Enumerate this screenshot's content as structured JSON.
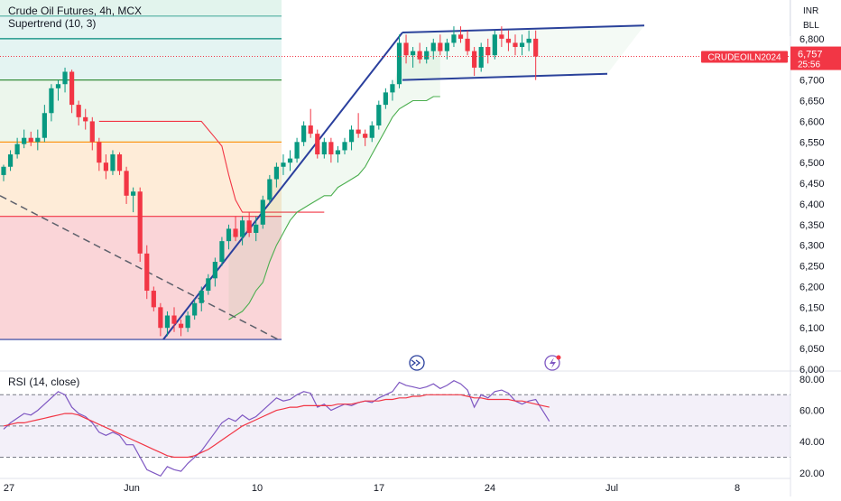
{
  "legend": {
    "title": "Crude Oil Futures, 4h, MCX",
    "indicator": "Supertrend (10, 3)",
    "rsi": "RSI (14, close)"
  },
  "header": {
    "currency": "INR",
    "unit": "BLL"
  },
  "price_label": {
    "symbol": "CRUDEOILN2024",
    "price": "6,757",
    "countdown": "25:56"
  },
  "colors": {
    "up": "#089981",
    "down": "#f23645",
    "supertrend_up": "#4caf50",
    "supertrend_down": "#f23645",
    "trendline": "#2a3f9d",
    "rsi_line": "#7e57c2",
    "rsi_ma": "#f23645"
  },
  "icons": [
    "fast-forward-icon",
    "lightning-icon"
  ],
  "chart_data": [
    {
      "type": "candlestick",
      "title": "Crude Oil Futures, 4h, MCX",
      "x_ticks": [
        "27",
        "Jun",
        "10",
        "17",
        "24",
        "Jul",
        "8"
      ],
      "y_ticks": [
        6000,
        6050,
        6100,
        6150,
        6200,
        6250,
        6300,
        6350,
        6400,
        6450,
        6500,
        6550,
        6600,
        6650,
        6700,
        6750,
        6800
      ],
      "ylim": [
        6000,
        6850
      ],
      "current_price": 6757,
      "fib_levels": [
        6072,
        6370,
        6550,
        6700,
        6855
      ],
      "candles": [
        [
          6470,
          6495,
          6455,
          6490
        ],
        [
          6490,
          6530,
          6480,
          6520
        ],
        [
          6520,
          6560,
          6510,
          6545
        ],
        [
          6545,
          6580,
          6535,
          6560
        ],
        [
          6560,
          6575,
          6540,
          6550
        ],
        [
          6550,
          6580,
          6530,
          6560
        ],
        [
          6560,
          6640,
          6550,
          6620
        ],
        [
          6620,
          6690,
          6600,
          6680
        ],
        [
          6680,
          6700,
          6650,
          6690
        ],
        [
          6690,
          6730,
          6670,
          6720
        ],
        [
          6720,
          6725,
          6620,
          6640
        ],
        [
          6640,
          6650,
          6590,
          6610
        ],
        [
          6610,
          6630,
          6580,
          6600
        ],
        [
          6600,
          6610,
          6530,
          6550
        ],
        [
          6550,
          6560,
          6480,
          6500
        ],
        [
          6500,
          6520,
          6460,
          6480
        ],
        [
          6480,
          6530,
          6470,
          6520
        ],
        [
          6520,
          6525,
          6470,
          6480
        ],
        [
          6480,
          6490,
          6400,
          6420
        ],
        [
          6420,
          6440,
          6380,
          6430
        ],
        [
          6430,
          6440,
          6260,
          6280
        ],
        [
          6280,
          6300,
          6170,
          6190
        ],
        [
          6190,
          6200,
          6140,
          6150
        ],
        [
          6150,
          6160,
          6080,
          6100
        ],
        [
          6100,
          6140,
          6080,
          6130
        ],
        [
          6130,
          6150,
          6090,
          6110
        ],
        [
          6110,
          6120,
          6080,
          6100
        ],
        [
          6100,
          6140,
          6090,
          6130
        ],
        [
          6130,
          6170,
          6120,
          6160
        ],
        [
          6160,
          6200,
          6140,
          6190
        ],
        [
          6190,
          6230,
          6180,
          6220
        ],
        [
          6220,
          6270,
          6200,
          6260
        ],
        [
          6260,
          6320,
          6250,
          6310
        ],
        [
          6310,
          6350,
          6290,
          6340
        ],
        [
          6340,
          6370,
          6310,
          6320
        ],
        [
          6320,
          6370,
          6300,
          6360
        ],
        [
          6360,
          6380,
          6320,
          6330
        ],
        [
          6330,
          6370,
          6310,
          6350
        ],
        [
          6350,
          6420,
          6340,
          6410
        ],
        [
          6410,
          6470,
          6400,
          6460
        ],
        [
          6460,
          6500,
          6440,
          6490
        ],
        [
          6490,
          6520,
          6470,
          6500
        ],
        [
          6500,
          6530,
          6480,
          6510
        ],
        [
          6510,
          6560,
          6500,
          6550
        ],
        [
          6550,
          6600,
          6540,
          6590
        ],
        [
          6590,
          6630,
          6560,
          6570
        ],
        [
          6570,
          6580,
          6510,
          6520
        ],
        [
          6520,
          6560,
          6510,
          6550
        ],
        [
          6550,
          6560,
          6500,
          6520
        ],
        [
          6520,
          6540,
          6500,
          6530
        ],
        [
          6530,
          6560,
          6520,
          6550
        ],
        [
          6550,
          6590,
          6530,
          6580
        ],
        [
          6580,
          6620,
          6560,
          6570
        ],
        [
          6570,
          6580,
          6540,
          6560
        ],
        [
          6560,
          6600,
          6550,
          6590
        ],
        [
          6590,
          6650,
          6580,
          6640
        ],
        [
          6640,
          6680,
          6630,
          6670
        ],
        [
          6670,
          6700,
          6650,
          6690
        ],
        [
          6690,
          6810,
          6680,
          6790
        ],
        [
          6790,
          6810,
          6740,
          6760
        ],
        [
          6760,
          6780,
          6730,
          6770
        ],
        [
          6770,
          6790,
          6740,
          6750
        ],
        [
          6750,
          6780,
          6740,
          6770
        ],
        [
          6770,
          6800,
          6750,
          6790
        ],
        [
          6790,
          6810,
          6760,
          6770
        ],
        [
          6770,
          6800,
          6750,
          6790
        ],
        [
          6790,
          6830,
          6780,
          6810
        ],
        [
          6810,
          6830,
          6790,
          6800
        ],
        [
          6800,
          6820,
          6760,
          6770
        ],
        [
          6770,
          6780,
          6710,
          6730
        ],
        [
          6730,
          6790,
          6720,
          6780
        ],
        [
          6780,
          6800,
          6740,
          6760
        ],
        [
          6760,
          6820,
          6750,
          6810
        ],
        [
          6810,
          6830,
          6780,
          6800
        ],
        [
          6800,
          6820,
          6770,
          6790
        ],
        [
          6790,
          6810,
          6760,
          6780
        ],
        [
          6780,
          6810,
          6760,
          6790
        ],
        [
          6790,
          6820,
          6770,
          6800
        ],
        [
          6800,
          6820,
          6700,
          6757
        ]
      ],
      "supertrend": [
        {
          "dir": "down",
          "values": [
            6600,
            6600,
            6600,
            6600,
            6600,
            6600,
            6600,
            6600,
            6600,
            6600,
            6600,
            6600,
            6600,
            6600,
            6600,
            6600,
            6580,
            6560,
            6540,
            6470,
            6410,
            6380,
            6380,
            6380,
            6380,
            6380,
            6380,
            6380,
            6380,
            6380,
            6380,
            6380,
            6380,
            6380
          ]
        },
        {
          "dir": "up",
          "values": [
            6120,
            6130,
            6140,
            6160,
            6190,
            6210,
            6260,
            6300,
            6330,
            6360,
            6380,
            6390,
            6400,
            6410,
            6420,
            6420,
            6440,
            6450,
            6460,
            6470,
            6490,
            6520,
            6550,
            6580,
            6610,
            6630,
            6640,
            6650,
            6650,
            6650,
            6660,
            6660
          ]
        }
      ]
    },
    {
      "type": "line",
      "title": "RSI (14, close)",
      "y_ticks": [
        20,
        40,
        60,
        80
      ],
      "ylim": [
        15,
        80
      ],
      "bands": [
        30,
        50,
        70
      ],
      "series": [
        {
          "values": [
            48,
            52,
            55,
            58,
            57,
            60,
            64,
            68,
            72,
            70,
            62,
            58,
            56,
            52,
            46,
            44,
            46,
            44,
            38,
            38,
            30,
            22,
            20,
            18,
            24,
            22,
            21,
            26,
            30,
            34,
            40,
            46,
            52,
            55,
            53,
            57,
            54,
            56,
            60,
            64,
            68,
            66,
            67,
            70,
            72,
            71,
            62,
            64,
            60,
            62,
            64,
            63,
            65,
            66,
            65,
            68,
            70,
            72,
            78,
            76,
            75,
            74,
            75,
            77,
            74,
            76,
            79,
            77,
            73,
            62,
            70,
            68,
            72,
            73,
            71,
            66,
            64,
            66,
            67,
            60,
            53
          ]
        },
        {
          "values": [
            50,
            51,
            52,
            52,
            53,
            54,
            55,
            56,
            57,
            58,
            58,
            57,
            55,
            53,
            51,
            49,
            47,
            45,
            43,
            41,
            39,
            37,
            35,
            33,
            31,
            30,
            30,
            30,
            31,
            33,
            35,
            38,
            41,
            44,
            47,
            50,
            52,
            54,
            56,
            58,
            60,
            61,
            62,
            62,
            63,
            63,
            63,
            63,
            63,
            64,
            64,
            64,
            65,
            66,
            66,
            66,
            67,
            67,
            68,
            68,
            69,
            69,
            70,
            70,
            70,
            70,
            70,
            70,
            69,
            68,
            68,
            67,
            67,
            67,
            67,
            66,
            66,
            65,
            64,
            63,
            62
          ]
        }
      ]
    }
  ]
}
